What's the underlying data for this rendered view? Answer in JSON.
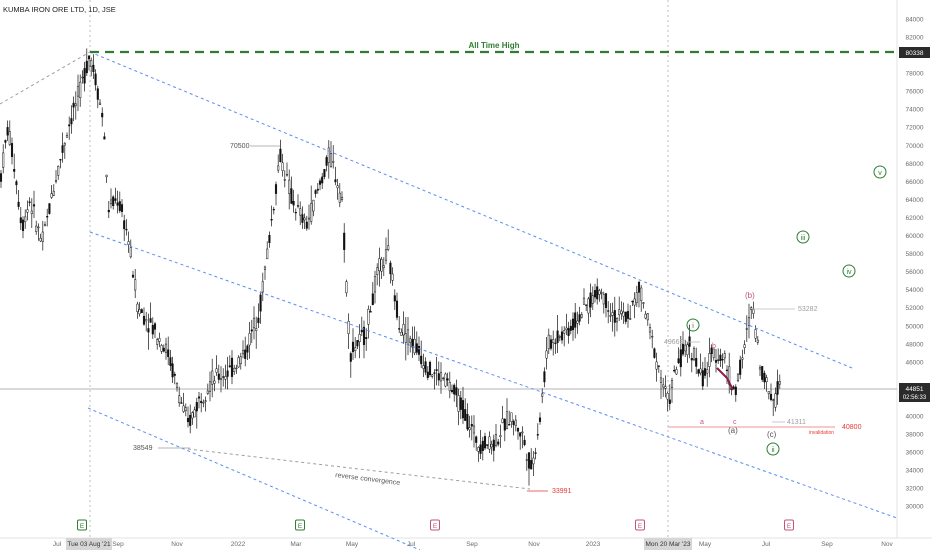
{
  "header": {
    "symbol_title": "KUMBA IRON ORE LTD, 1D, JSE"
  },
  "colors": {
    "ath": "#2e7d32",
    "channel": "#5b8def",
    "candle": "#111111",
    "invalidation": "#e53935",
    "wave_pink": "#c2567a",
    "wave_green": "#2e7d32",
    "wave_gray": "#555555",
    "price_label_bg": "#2b2b2b"
  },
  "price_axis": {
    "ticks": [
      "84000",
      "82000",
      "80338",
      "78000",
      "76000",
      "74000",
      "72000",
      "70000",
      "68000",
      "66000",
      "64000",
      "62000",
      "60000",
      "58000",
      "56000",
      "54000",
      "52000",
      "50000",
      "48000",
      "46000",
      "42000",
      "40000",
      "38000",
      "36000",
      "34000",
      "32000",
      "30000"
    ],
    "last_price": "44851",
    "countdown": "02:56:33"
  },
  "time_axis": {
    "ticks": [
      "Jul",
      "Sep",
      "Nov",
      "2022",
      "Mar",
      "May",
      "Jul",
      "Sep",
      "Nov",
      "2023",
      "May",
      "Jul",
      "Sep",
      "Nov"
    ],
    "highlight_1": "Tue 03 Aug '21",
    "highlight_2": "Mon 20 Mar '23"
  },
  "annotations": {
    "ath_label": "All Time High",
    "level_70500": "70500",
    "level_38549": "38549",
    "level_33991": "33991",
    "level_49669": "49669",
    "level_53282": "53282",
    "level_41311": "41311",
    "level_40800": "40800",
    "invalidation": "invalidation",
    "reverse_convergence": "reverse convergence",
    "wave_i": "i",
    "wave_ii": "ii",
    "wave_iii": "iii",
    "wave_iv": "iv",
    "wave_v": "v",
    "wave_a_paren": "(a)",
    "wave_b_paren": "(b)",
    "wave_c_paren": "(c)",
    "wave_a": "a",
    "wave_b": "b",
    "wave_c": "c"
  },
  "event_markers": [
    "E",
    "E",
    "E",
    "E",
    "E"
  ],
  "chart_data": {
    "type": "candlestick",
    "title": "KUMBA IRON ORE LTD, 1D, JSE",
    "ylim": [
      29000,
      85000
    ],
    "x": [
      "2021-06",
      "2021-07",
      "2021-08",
      "2021-09",
      "2021-10",
      "2021-11",
      "2021-12",
      "2022-01",
      "2022-02",
      "2022-03",
      "2022-04",
      "2022-05",
      "2022-06",
      "2022-07",
      "2022-08",
      "2022-09",
      "2022-10",
      "2022-11",
      "2022-12",
      "2023-01",
      "2023-02",
      "2023-03",
      "2023-04",
      "2023-05",
      "2023-06",
      "2023-07"
    ],
    "close": [
      64000,
      72000,
      79000,
      62000,
      52000,
      45000,
      40000,
      47000,
      60000,
      67000,
      65000,
      56000,
      49000,
      46000,
      44000,
      38000,
      35000,
      45000,
      49000,
      53000,
      52000,
      43000,
      47000,
      45000,
      50000,
      44851
    ],
    "all_time_high": 80338,
    "last": 44851
  }
}
